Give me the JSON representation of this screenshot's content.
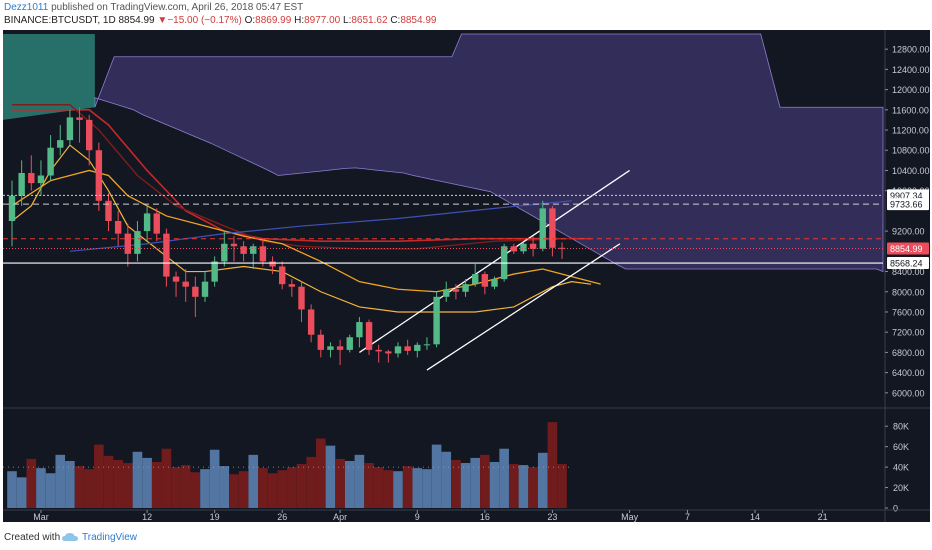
{
  "header": {
    "user": "Dezz1011",
    "published": "published on TradingView.com, April 26, 2018 05:47 EST",
    "symbol": "BINANCE:BTCUSDT, 1D",
    "last": "8854.99",
    "arrow": "▼",
    "change": "−15.00 (−0.17%)",
    "o_label": "O:",
    "o_value": "8869.99",
    "h_label": "H:",
    "h_value": "8977.00",
    "l_label": "L:",
    "l_value": "8651.62",
    "c_label": "C:",
    "c_value": "8854.99"
  },
  "footer": {
    "created": "Created with",
    "brand": "TradingView"
  },
  "colors": {
    "background": "#131722",
    "up": "#53b987",
    "down": "#eb4d5c",
    "cloud": "#5b4a9e",
    "cloud_green": "#2f8f83",
    "orange": "#f0a520",
    "redline": "#b71c1c",
    "volume_up": "#5a7fb0",
    "volume_down": "#7b1c1c"
  },
  "chart_data": {
    "type": "candlestick",
    "symbol": "BINANCE:BTCUSDT",
    "interval": "1D",
    "price_axis": {
      "ticks": [
        "12800.00",
        "12400.00",
        "12000.00",
        "11600.00",
        "11200.00",
        "10800.00",
        "10400.00",
        "10000.00",
        "9200.00",
        "8400.00",
        "8000.00",
        "7600.00",
        "7200.00",
        "6800.00",
        "6400.00",
        "6000.00"
      ],
      "ylim": [
        5700,
        13100
      ]
    },
    "price_labels": [
      {
        "text": "9907.34",
        "value": 9907.34,
        "style": "white"
      },
      {
        "text": "9733.66",
        "value": 9733.66,
        "style": "white"
      },
      {
        "text": "8854.99",
        "value": 8854.99,
        "style": "red"
      },
      {
        "text": "8568.24",
        "value": 8568.24,
        "style": "white"
      }
    ],
    "x_axis": {
      "ticks": [
        {
          "label": "Mar",
          "index": 3
        },
        {
          "label": "12",
          "index": 14
        },
        {
          "label": "19",
          "index": 21
        },
        {
          "label": "26",
          "index": 28
        },
        {
          "label": "Apr",
          "index": 34
        },
        {
          "label": "9",
          "index": 42
        },
        {
          "label": "16",
          "index": 49
        },
        {
          "label": "23",
          "index": 56
        },
        {
          "label": "May",
          "index": 64
        },
        {
          "label": "7",
          "index": 70
        },
        {
          "label": "14",
          "index": 77
        },
        {
          "label": "21",
          "index": 84
        }
      ]
    },
    "candles": [
      {
        "o": 9400,
        "h": 10200,
        "l": 8900,
        "c": 9900
      },
      {
        "o": 9900,
        "h": 10600,
        "l": 9700,
        "c": 10350
      },
      {
        "o": 10350,
        "h": 10700,
        "l": 10000,
        "c": 10150
      },
      {
        "o": 10150,
        "h": 10600,
        "l": 9900,
        "c": 10300
      },
      {
        "o": 10300,
        "h": 11100,
        "l": 10200,
        "c": 10850
      },
      {
        "o": 10850,
        "h": 11300,
        "l": 10700,
        "c": 11000
      },
      {
        "o": 11000,
        "h": 11600,
        "l": 10900,
        "c": 11450
      },
      {
        "o": 11450,
        "h": 11650,
        "l": 10950,
        "c": 11400
      },
      {
        "o": 11400,
        "h": 11500,
        "l": 10500,
        "c": 10800
      },
      {
        "o": 10800,
        "h": 10950,
        "l": 9600,
        "c": 9800
      },
      {
        "o": 9800,
        "h": 9950,
        "l": 9200,
        "c": 9400
      },
      {
        "o": 9400,
        "h": 9600,
        "l": 8900,
        "c": 9150
      },
      {
        "o": 9150,
        "h": 9350,
        "l": 8500,
        "c": 8750
      },
      {
        "o": 8750,
        "h": 9400,
        "l": 8600,
        "c": 9200
      },
      {
        "o": 9200,
        "h": 9700,
        "l": 9000,
        "c": 9550
      },
      {
        "o": 9550,
        "h": 9650,
        "l": 9000,
        "c": 9150
      },
      {
        "o": 9150,
        "h": 9250,
        "l": 8100,
        "c": 8300
      },
      {
        "o": 8300,
        "h": 8400,
        "l": 7900,
        "c": 8200
      },
      {
        "o": 8200,
        "h": 8450,
        "l": 7800,
        "c": 8100
      },
      {
        "o": 8100,
        "h": 8300,
        "l": 7500,
        "c": 7900
      },
      {
        "o": 7900,
        "h": 8400,
        "l": 7800,
        "c": 8200
      },
      {
        "o": 8200,
        "h": 8700,
        "l": 8100,
        "c": 8600
      },
      {
        "o": 8600,
        "h": 9200,
        "l": 8500,
        "c": 8950
      },
      {
        "o": 8950,
        "h": 9100,
        "l": 8600,
        "c": 8900
      },
      {
        "o": 8900,
        "h": 9000,
        "l": 8600,
        "c": 8750
      },
      {
        "o": 8750,
        "h": 8950,
        "l": 8450,
        "c": 8900
      },
      {
        "o": 8900,
        "h": 9050,
        "l": 8500,
        "c": 8600
      },
      {
        "o": 8600,
        "h": 8700,
        "l": 8350,
        "c": 8500
      },
      {
        "o": 8500,
        "h": 8600,
        "l": 8050,
        "c": 8150
      },
      {
        "o": 8150,
        "h": 8250,
        "l": 7900,
        "c": 8100
      },
      {
        "o": 8100,
        "h": 8200,
        "l": 7400,
        "c": 7650
      },
      {
        "o": 7650,
        "h": 7750,
        "l": 7000,
        "c": 7150
      },
      {
        "o": 7150,
        "h": 7250,
        "l": 6700,
        "c": 6850
      },
      {
        "o": 6850,
        "h": 7000,
        "l": 6700,
        "c": 6920
      },
      {
        "o": 6920,
        "h": 7050,
        "l": 6550,
        "c": 6850
      },
      {
        "o": 6850,
        "h": 7150,
        "l": 6800,
        "c": 7100
      },
      {
        "o": 7100,
        "h": 7500,
        "l": 6900,
        "c": 7400
      },
      {
        "o": 7400,
        "h": 7450,
        "l": 6750,
        "c": 6850
      },
      {
        "o": 6850,
        "h": 6950,
        "l": 6600,
        "c": 6820
      },
      {
        "o": 6820,
        "h": 6850,
        "l": 6600,
        "c": 6780
      },
      {
        "o": 6780,
        "h": 7000,
        "l": 6700,
        "c": 6920
      },
      {
        "o": 6920,
        "h": 7050,
        "l": 6750,
        "c": 6830
      },
      {
        "o": 6830,
        "h": 7000,
        "l": 6700,
        "c": 6950
      },
      {
        "o": 6950,
        "h": 7100,
        "l": 6850,
        "c": 6960
      },
      {
        "o": 6960,
        "h": 8000,
        "l": 6900,
        "c": 7900
      },
      {
        "o": 7900,
        "h": 8200,
        "l": 7800,
        "c": 8050
      },
      {
        "o": 8050,
        "h": 8150,
        "l": 7850,
        "c": 8000
      },
      {
        "o": 8000,
        "h": 8250,
        "l": 7900,
        "c": 8150
      },
      {
        "o": 8150,
        "h": 8550,
        "l": 8100,
        "c": 8350
      },
      {
        "o": 8350,
        "h": 8400,
        "l": 7950,
        "c": 8100
      },
      {
        "o": 8100,
        "h": 8300,
        "l": 8050,
        "c": 8250
      },
      {
        "o": 8250,
        "h": 8950,
        "l": 8200,
        "c": 8900
      },
      {
        "o": 8900,
        "h": 8950,
        "l": 8750,
        "c": 8800
      },
      {
        "o": 8800,
        "h": 8980,
        "l": 8750,
        "c": 8950
      },
      {
        "o": 8950,
        "h": 9100,
        "l": 8700,
        "c": 8850
      },
      {
        "o": 8850,
        "h": 9800,
        "l": 8800,
        "c": 9650
      },
      {
        "o": 9650,
        "h": 9700,
        "l": 8700,
        "c": 8870
      },
      {
        "o": 8869.99,
        "h": 8977,
        "l": 8651.62,
        "c": 8854.99
      }
    ],
    "volume": {
      "axis_ticks": [
        "80K",
        "60K",
        "40K",
        "20K",
        "0"
      ],
      "values": [
        36,
        30,
        48,
        39,
        34,
        52,
        46,
        41,
        38,
        62,
        51,
        47,
        44,
        55,
        49,
        45,
        58,
        40,
        42,
        35,
        38,
        57,
        41,
        33,
        36,
        52,
        39,
        34,
        37,
        40,
        43,
        50,
        68,
        61,
        48,
        46,
        52,
        44,
        40,
        37,
        36,
        41,
        39,
        38,
        62,
        55,
        47,
        44,
        49,
        52,
        45,
        58,
        43,
        42,
        40,
        54,
        84,
        43
      ]
    }
  }
}
